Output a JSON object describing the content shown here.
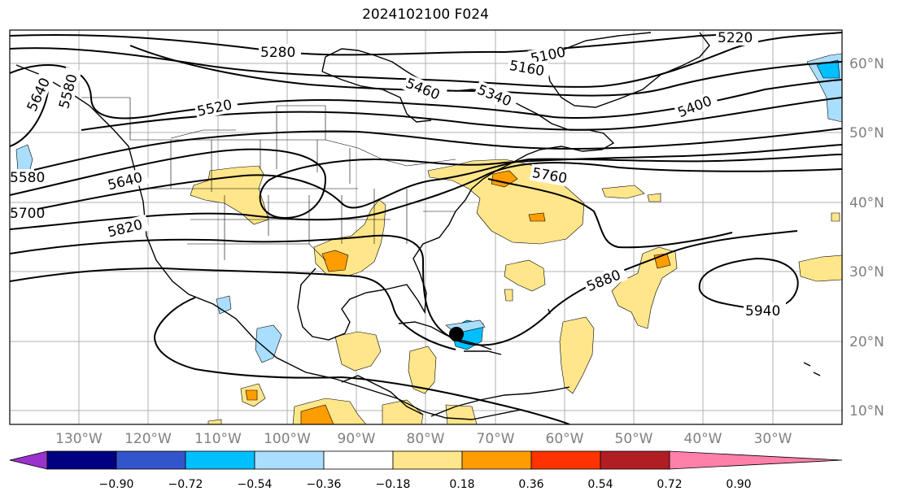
{
  "title": "2024102100 F024",
  "lon_labels": [
    "130°W",
    "120°W",
    "110°W",
    "100°W",
    "90°W",
    "80°W",
    "70°W",
    "60°W",
    "50°W",
    "40°W",
    "30°W"
  ],
  "lat_labels": [
    "60°N",
    "50°N",
    "40°N",
    "30°N",
    "20°N",
    "10°N"
  ],
  "contour_labels": [
    "5280",
    "5220",
    "5100",
    "5160",
    "5460",
    "5340",
    "5400",
    "5520",
    "5640",
    "5580",
    "5580",
    "5640",
    "5700",
    "5820",
    "5760",
    "5880",
    "5940"
  ],
  "colorbar": {
    "ticks": [
      "−0.90",
      "−0.72",
      "−0.54",
      "−0.36",
      "−0.18",
      "0.18",
      "0.36",
      "0.54",
      "0.72",
      "0.90"
    ],
    "colors": [
      "#9933cc",
      "#000080",
      "#3355cc",
      "#00bfff",
      "#aadeff",
      "#ffffff",
      "#ffe68a",
      "#ff9d00",
      "#ff3300",
      "#b01e23",
      "#ff80a8"
    ]
  },
  "colors": {
    "yellow": "#ffe68a",
    "orange": "#ff9d00",
    "light_blue": "#aadeff",
    "blue": "#00bfff",
    "grid": "#b0b0b0",
    "tick_label": "#808080"
  },
  "marker": "storm-center"
}
